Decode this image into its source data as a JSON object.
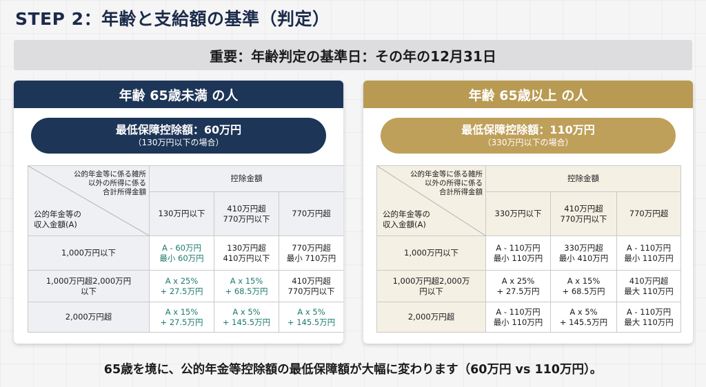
{
  "title": "STEP 2：年齢と支給額の基準（判定）",
  "banner": "重要：年齢判定の基準日：その年の12月31日",
  "left": {
    "header": "年齢 65歳未満 の人",
    "pill_main": "最低保障控除額：60万円",
    "pill_sub": "（130万円以下の場合）",
    "diag_top": [
      "公的年金等に係る雑所",
      "以外の所得に係る",
      "合計所得金額"
    ],
    "diag_bottom": [
      "公的年金等の",
      "収入金額(A)"
    ],
    "group_header": "控除金額",
    "col_headers": [
      [
        "130万円以下"
      ],
      [
        "410万円超",
        "770万円以下"
      ],
      [
        "770万円超"
      ]
    ],
    "rows": [
      {
        "label": [
          "1,000万円以下"
        ],
        "cells": [
          {
            "lines": [
              "A - 60万円",
              "最小 60万円"
            ],
            "accent": true
          },
          {
            "lines": [
              "130万円超",
              "410万円以下"
            ],
            "accent": false
          },
          {
            "lines": [
              "770万円超",
              "最小 710万円"
            ],
            "accent": false
          }
        ]
      },
      {
        "label": [
          "1,000万円超2,000万円",
          "以下"
        ],
        "cells": [
          {
            "lines": [
              "A x 25%",
              "+ 27.5万円"
            ],
            "accent": true
          },
          {
            "lines": [
              "A x 15%",
              "+ 68.5万円"
            ],
            "accent": true
          },
          {
            "lines": [
              "410万円超",
              "770万円以下"
            ],
            "accent": false
          }
        ]
      },
      {
        "label": [
          "2,000万円超"
        ],
        "cells": [
          {
            "lines": [
              "A x 15%",
              "+ 27.5万円"
            ],
            "accent": true
          },
          {
            "lines": [
              "A x 5%",
              "+ 145.5万円"
            ],
            "accent": true
          },
          {
            "lines": [
              "A x 5%",
              "+ 145.5万円"
            ],
            "accent": true
          }
        ]
      }
    ]
  },
  "right": {
    "header": "年齢 65歳以上 の人",
    "pill_main": "最低保障控除額：110万円",
    "pill_sub": "（330万円以下の場合）",
    "diag_top": [
      "公的年金等に係る雑所",
      "以外の所得に係る",
      "合計所得金額"
    ],
    "diag_bottom": [
      "公的年金等の",
      "収入金額(A)"
    ],
    "group_header": "控除金額",
    "col_headers": [
      [
        "330万円以下"
      ],
      [
        "410万円超",
        "770万円以下"
      ],
      [
        "770万円超"
      ]
    ],
    "rows": [
      {
        "label": [
          "1,000万円以下"
        ],
        "cells": [
          {
            "lines": [
              "A - 110万円",
              "最小 110万円"
            ],
            "accent": false
          },
          {
            "lines": [
              "330万円超",
              "最小 410万円"
            ],
            "accent": false
          },
          {
            "lines": [
              "A - 110万円",
              "最小 110万円"
            ],
            "accent": false
          }
        ]
      },
      {
        "label": [
          "1,000万円超2,000万",
          "円以下"
        ],
        "cells": [
          {
            "lines": [
              "A x 25%",
              "+ 27.5万円"
            ],
            "accent": false
          },
          {
            "lines": [
              "A x 15%",
              "+ 68.5万円"
            ],
            "accent": false
          },
          {
            "lines": [
              "410万円超",
              "最大 110万円"
            ],
            "accent": false
          }
        ]
      },
      {
        "label": [
          "2,000万円超"
        ],
        "cells": [
          {
            "lines": [
              "A - 110万円",
              "最小 110万円"
            ],
            "accent": false
          },
          {
            "lines": [
              "A x 5%",
              "+ 145.5万円"
            ],
            "accent": false
          },
          {
            "lines": [
              "A - 110万円",
              "最大 110万円"
            ],
            "accent": false
          }
        ]
      }
    ]
  },
  "footer": "65歳を境に、公的年金等控除額の最低保障額が大幅に変わります（60万円 vs 110万円）。",
  "colors": {
    "navy": "#1d3557",
    "gold": "#b89a53",
    "accent_text": "#1a7a6c"
  }
}
